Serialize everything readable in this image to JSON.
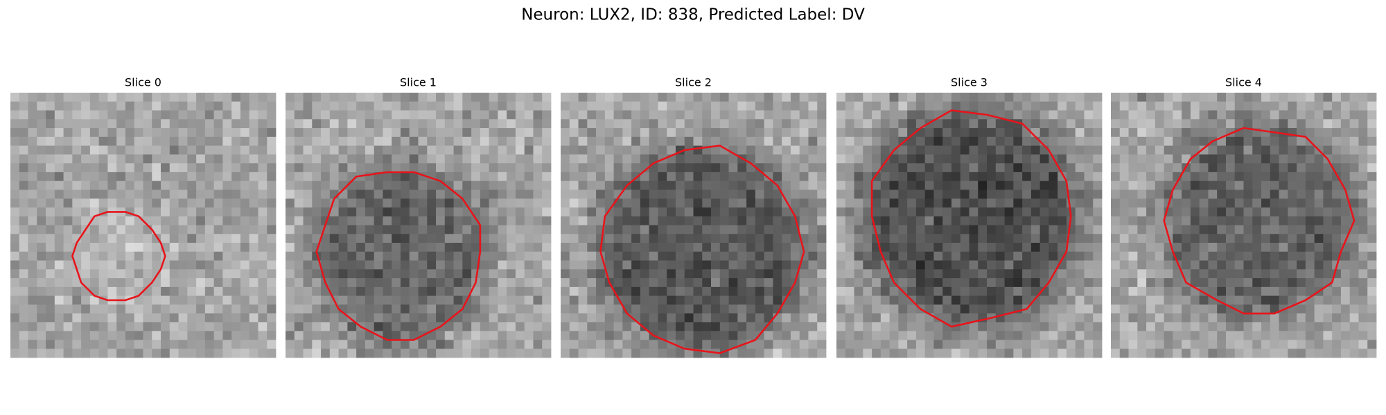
{
  "title": "Neuron: LUX2, ID: 838, Predicted Label: DV",
  "panels": [
    {
      "title": "Slice 0"
    },
    {
      "title": "Slice 1"
    },
    {
      "title": "Slice 2"
    },
    {
      "title": "Slice 3"
    },
    {
      "title": "Slice 4"
    }
  ]
}
